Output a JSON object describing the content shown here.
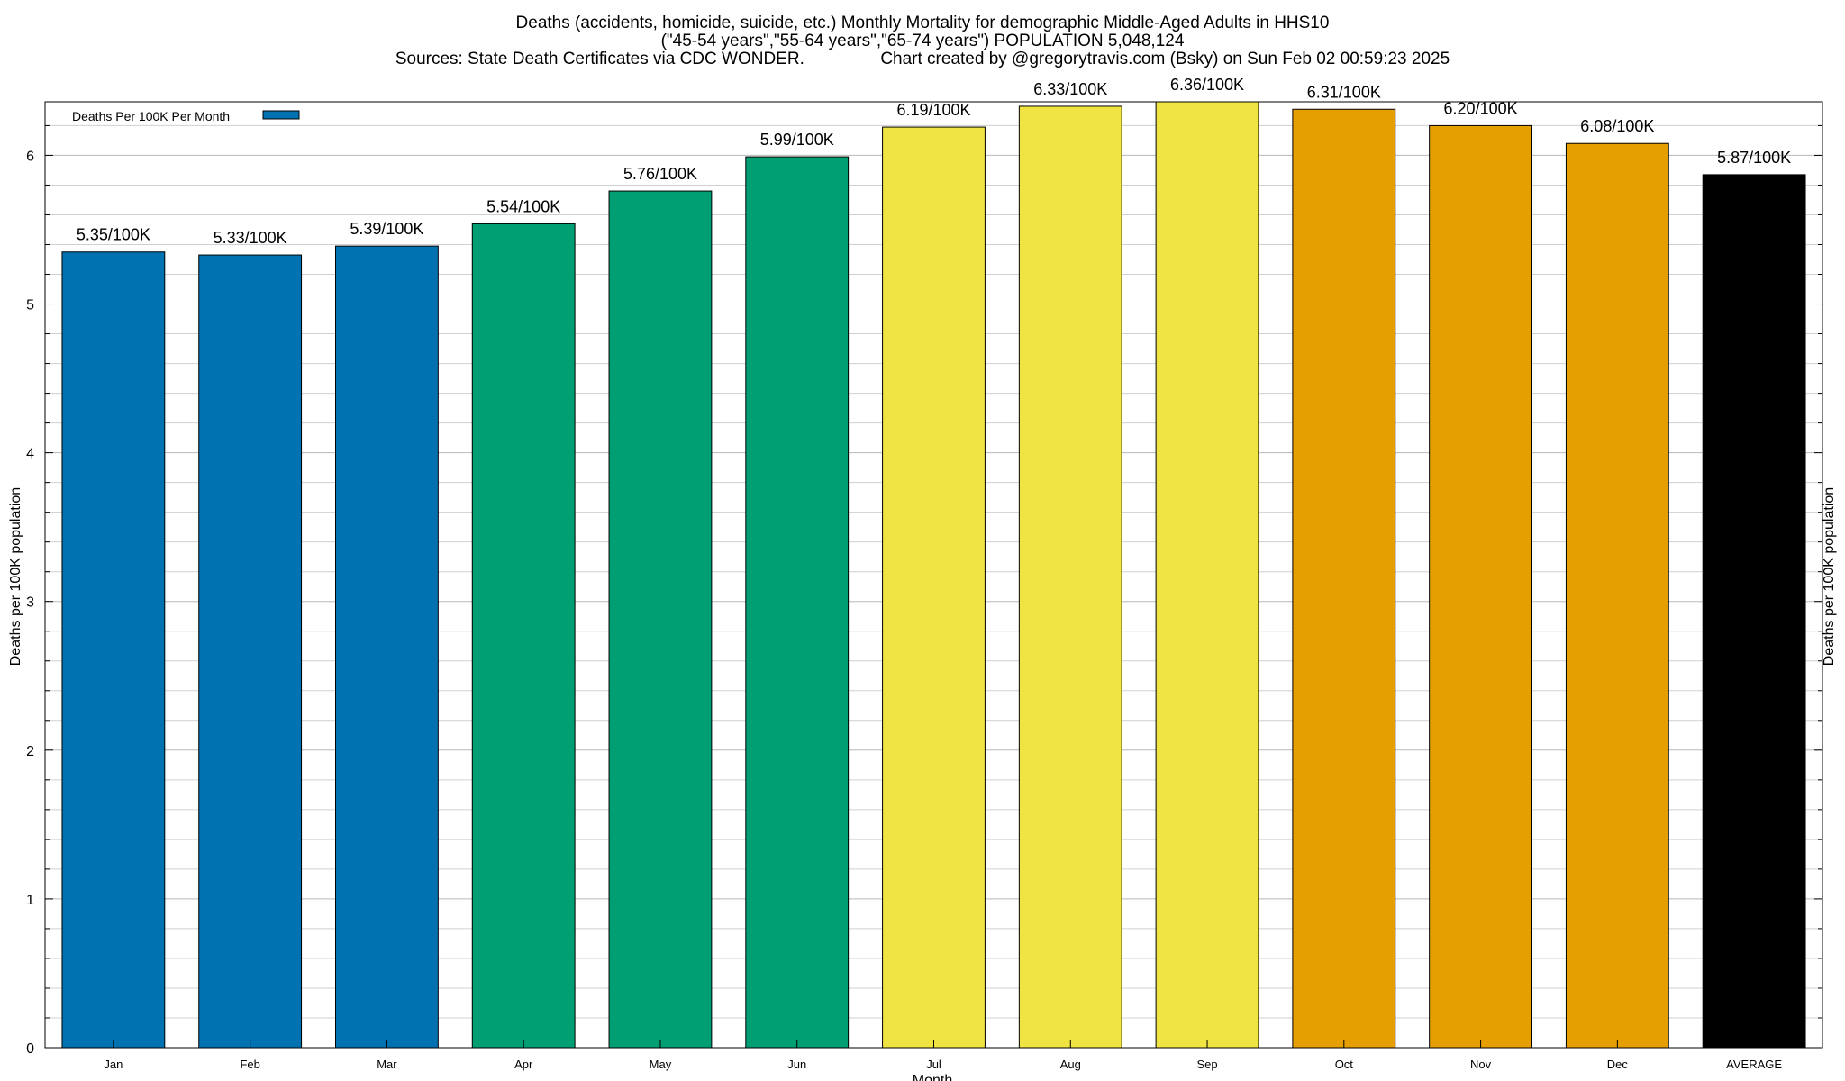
{
  "chart_data": {
    "type": "bar",
    "title_lines": [
      "Deaths (accidents, homicide, suicide, etc.) Monthly Mortality for demographic Middle-Aged Adults in HHS10",
      "(\"45-54 years\",\"55-64 years\",\"65-74 years\") POPULATION 5,048,124",
      "Sources: State Death Certificates via CDC WONDER.                Chart created by @gregorytravis.com (Bsky) on Sun Feb 02 00:59:23 2025"
    ],
    "xlabel": "Month",
    "ylabel": "Deaths per 100K population",
    "y2label": "Deaths per 100K population",
    "ylim": [
      0,
      6.36
    ],
    "yticks": [
      0,
      1,
      2,
      3,
      4,
      5,
      6
    ],
    "minor_ticks_per_major": 5,
    "grid": true,
    "legend": {
      "placement": "top-left",
      "entries": [
        {
          "label": "Deaths Per 100K Per Month",
          "color": "#0072b2"
        }
      ]
    },
    "categories": [
      "Jan",
      "Feb",
      "Mar",
      "Apr",
      "May",
      "Jun",
      "Jul",
      "Aug",
      "Sep",
      "Oct",
      "Nov",
      "Dec",
      "AVERAGE"
    ],
    "values": [
      5.35,
      5.33,
      5.39,
      5.54,
      5.76,
      5.99,
      6.19,
      6.33,
      6.36,
      6.31,
      6.2,
      6.08,
      5.87
    ],
    "data_labels": [
      "5.35/100K",
      "5.33/100K",
      "5.39/100K",
      "5.54/100K",
      "5.76/100K",
      "5.99/100K",
      "6.19/100K",
      "6.33/100K",
      "6.36/100K",
      "6.31/100K",
      "6.20/100K",
      "6.08/100K",
      "5.87/100K"
    ],
    "colors": [
      "#0072b2",
      "#0072b2",
      "#0072b2",
      "#009e73",
      "#009e73",
      "#009e73",
      "#f0e442",
      "#f0e442",
      "#f0e442",
      "#e69f00",
      "#e69f00",
      "#e69f00",
      "#000000"
    ]
  }
}
